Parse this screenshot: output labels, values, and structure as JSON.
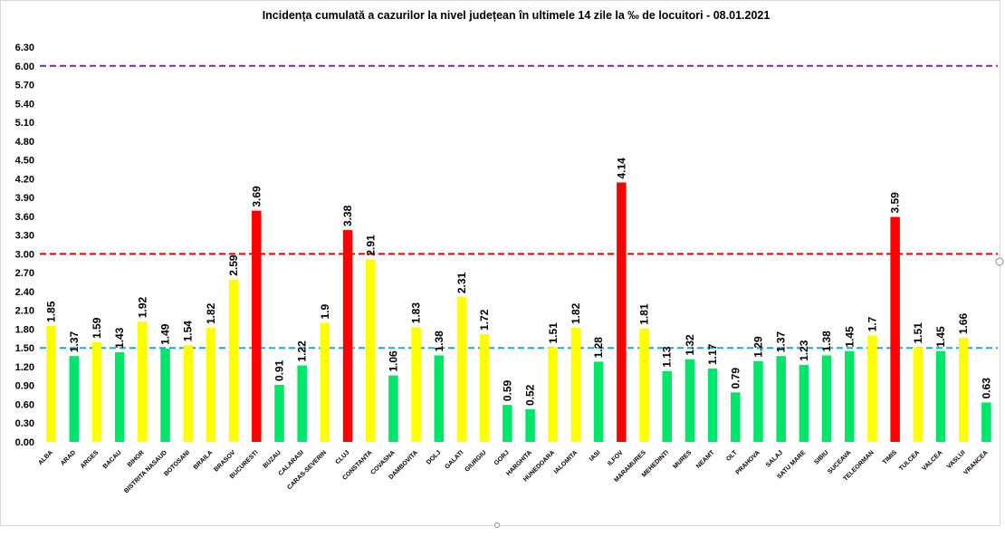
{
  "chart_data": {
    "type": "bar",
    "title": "Incidența cumulată a cazurilor la nivel județean în ultimele 14 zile la ‰ de locuitori - 08.01.2021",
    "xlabel": "",
    "ylabel": "",
    "ylim": [
      0,
      6.3
    ],
    "yticks": [
      "0.00",
      "0.30",
      "0.60",
      "0.90",
      "1.20",
      "1.50",
      "1.80",
      "2.10",
      "2.40",
      "2.70",
      "3.00",
      "3.30",
      "3.60",
      "3.90",
      "4.20",
      "4.50",
      "4.80",
      "5.10",
      "5.40",
      "5.70",
      "6.00",
      "6.30"
    ],
    "grid": false,
    "legend": "none",
    "categories": [
      "ALBA",
      "ARAD",
      "ARGES",
      "BACAU",
      "BIHOR",
      "BISTRITA NASAUD",
      "BOTOSANI",
      "BRAILA",
      "BRASOV",
      "BUCURESTI",
      "BUZAU",
      "CALARASI",
      "CARAS-SEVERIN",
      "CLUJ",
      "CONSTANTA",
      "COVASNA",
      "DAMBOVITA",
      "DOLJ",
      "GALATI",
      "GIURGIU",
      "GORJ",
      "HARGHITA",
      "HUNEDOARA",
      "IALOMITA",
      "IASI",
      "ILFOV",
      "MARAMURES",
      "MEHEDINTI",
      "MURES",
      "NEAMT",
      "OLT",
      "PRAHOVA",
      "SALAJ",
      "SATU MARE",
      "SIBIU",
      "SUCEAVA",
      "TELEORMAN",
      "TIMIS",
      "TULCEA",
      "VALCEA",
      "VASLUI",
      "VRANCEA"
    ],
    "values": [
      1.85,
      1.37,
      1.59,
      1.43,
      1.92,
      1.49,
      1.54,
      1.82,
      2.59,
      3.69,
      0.91,
      1.22,
      1.9,
      3.38,
      2.91,
      1.06,
      1.83,
      1.38,
      2.31,
      1.72,
      0.59,
      0.52,
      1.51,
      1.82,
      1.28,
      4.14,
      1.81,
      1.13,
      1.32,
      1.17,
      0.79,
      1.29,
      1.37,
      1.23,
      1.38,
      1.45,
      1.7,
      3.59,
      1.51,
      1.45,
      1.66,
      0.63
    ],
    "value_labels": [
      "1.85",
      "1.37",
      "1.59",
      "1.43",
      "1.92",
      "1.49",
      "1.54",
      "1.82",
      "2.59",
      "3.69",
      "0.91",
      "1.22",
      "1.9",
      "3.38",
      "2.91",
      "1.06",
      "1.83",
      "1.38",
      "2.31",
      "1.72",
      "0.59",
      "0.52",
      "1.51",
      "1.82",
      "1.28",
      "4.14",
      "1.81",
      "1.13",
      "1.32",
      "1.17",
      "0.79",
      "1.29",
      "1.37",
      "1.23",
      "1.38",
      "1.45",
      "1.7",
      "3.59",
      "1.51",
      "1.45",
      "1.66",
      "0.63"
    ],
    "bar_color_class": [
      "yellow",
      "green",
      "yellow",
      "green",
      "yellow",
      "green",
      "yellow",
      "yellow",
      "yellow",
      "red",
      "green",
      "green",
      "yellow",
      "red",
      "yellow",
      "green",
      "yellow",
      "green",
      "yellow",
      "yellow",
      "green",
      "green",
      "yellow",
      "yellow",
      "green",
      "red",
      "yellow",
      "green",
      "green",
      "green",
      "green",
      "green",
      "green",
      "green",
      "green",
      "green",
      "yellow",
      "red",
      "yellow",
      "green",
      "yellow",
      "green"
    ],
    "colors": {
      "green": "#00e66a",
      "yellow": "#ffff00",
      "red": "#ff0000"
    },
    "reference_lines": [
      {
        "value": 1.5,
        "color": "#1fa8d6",
        "style": "dashed"
      },
      {
        "value": 3.0,
        "color": "#e00000",
        "style": "dashed"
      },
      {
        "value": 6.0,
        "color": "#7030a0",
        "style": "dashed"
      }
    ]
  }
}
